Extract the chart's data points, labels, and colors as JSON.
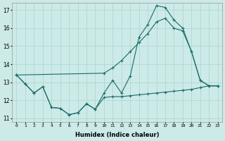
{
  "xlabel": "Humidex (Indice chaleur)",
  "xlim": [
    -0.5,
    23.5
  ],
  "ylim": [
    10.8,
    17.4
  ],
  "yticks": [
    11,
    12,
    13,
    14,
    15,
    16,
    17
  ],
  "xticks": [
    0,
    1,
    2,
    3,
    4,
    5,
    6,
    7,
    8,
    9,
    10,
    11,
    12,
    13,
    14,
    15,
    16,
    17,
    18,
    19,
    20,
    21,
    22,
    23
  ],
  "bg_color": "#cceae7",
  "grid_color": "#aad4d0",
  "line_color": "#1a6b6b",
  "s1_x": [
    0,
    1,
    2,
    3,
    4,
    5,
    6,
    7,
    8,
    9,
    10,
    11,
    12,
    13,
    14,
    15,
    16,
    17,
    18,
    19,
    20,
    21,
    22,
    23
  ],
  "s1_y": [
    13.4,
    12.9,
    12.4,
    12.75,
    11.6,
    11.55,
    11.2,
    11.3,
    11.8,
    11.5,
    12.4,
    13.1,
    12.4,
    13.35,
    15.5,
    16.2,
    17.25,
    17.15,
    16.45,
    16.0,
    14.7,
    13.1,
    12.8,
    12.8
  ],
  "s2_x": [
    0,
    10,
    11,
    12,
    13,
    14,
    15,
    16,
    17,
    18,
    19,
    20,
    21,
    22,
    23
  ],
  "s2_y": [
    13.4,
    13.5,
    13.8,
    14.2,
    14.7,
    15.2,
    15.7,
    16.35,
    16.55,
    16.0,
    15.85,
    14.7,
    13.1,
    12.8,
    12.8
  ],
  "s3_x": [
    0,
    1,
    2,
    3,
    4,
    5,
    6,
    7,
    8,
    9,
    10,
    11,
    12,
    13,
    14,
    15,
    16,
    17,
    18,
    19,
    20,
    21,
    22,
    23
  ],
  "s3_y": [
    13.4,
    12.9,
    12.4,
    12.75,
    11.6,
    11.55,
    11.2,
    11.3,
    11.8,
    11.5,
    12.15,
    12.2,
    12.2,
    12.25,
    12.3,
    12.35,
    12.4,
    12.45,
    12.5,
    12.55,
    12.6,
    12.7,
    12.8,
    12.8
  ]
}
